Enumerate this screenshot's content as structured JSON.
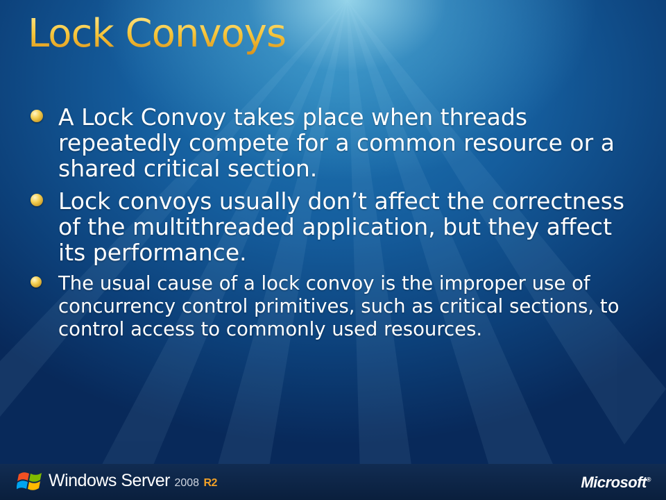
{
  "slide": {
    "title": "Lock Convoys",
    "bullets": [
      {
        "text": "A Lock Convoy takes place when threads repeatedly compete for a common resource or a shared critical section."
      },
      {
        "text": "Lock convoys usually don’t affect the correctness of the multithreaded application, but they affect its performance."
      },
      {
        "text": "The usual cause of a lock convoy is the improper use of concurrency control primitives, such as critical sections, to control access to commonly used resources."
      }
    ]
  },
  "footer": {
    "product_name": "Windows Server",
    "product_version": "2008",
    "product_edition": "R2",
    "company": "Microsoft",
    "company_mark": "®",
    "logo_icon": "windows-flag-icon"
  },
  "colors": {
    "title_gold": "#f2c23c",
    "bullet_gold": "#f4cf52",
    "background_blue": "#155e9e",
    "footer_bar": "#0a1f3d",
    "r2_orange": "#f2a127"
  }
}
